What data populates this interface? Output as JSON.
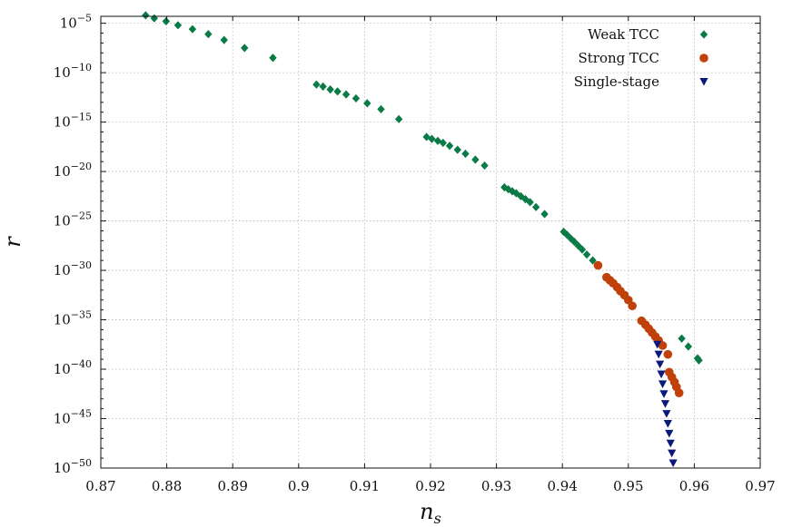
{
  "chart_data": {
    "type": "scatter",
    "xlabel_main": "n",
    "xlabel_sub": "s",
    "ylabel": "r",
    "xlim": [
      0.87,
      0.97
    ],
    "ylim_log10": [
      -50,
      -4.3
    ],
    "log_y": true,
    "grid": true,
    "legend_position": "top-right",
    "x_ticks": [
      "0.87",
      "0.88",
      "0.89",
      "0.9",
      "0.91",
      "0.92",
      "0.93",
      "0.94",
      "0.95",
      "0.96",
      "0.97"
    ],
    "x_tick_values": [
      0.87,
      0.88,
      0.89,
      0.9,
      0.91,
      0.92,
      0.93,
      0.94,
      0.95,
      0.96,
      0.97
    ],
    "y_tick_exponents": [
      "−5",
      "−10",
      "−15",
      "−20",
      "−25",
      "−30",
      "−35",
      "−40",
      "−45",
      "−50"
    ],
    "y_tick_values_log10": [
      -5,
      -10,
      -15,
      -20,
      -25,
      -30,
      -35,
      -40,
      -45,
      -50
    ],
    "y_tick_base": "10",
    "series": [
      {
        "name": "Weak TCC",
        "marker": "diamond",
        "color": "#0a7a46",
        "points": [
          [
            0.8768,
            -4.2
          ],
          [
            0.8781,
            -4.5
          ],
          [
            0.8799,
            -4.8
          ],
          [
            0.8817,
            -5.2
          ],
          [
            0.8839,
            -5.6
          ],
          [
            0.8863,
            -6.1
          ],
          [
            0.8887,
            -6.7
          ],
          [
            0.8918,
            -7.5
          ],
          [
            0.8961,
            -8.5
          ],
          [
            0.9027,
            -11.2
          ],
          [
            0.9037,
            -11.4
          ],
          [
            0.9048,
            -11.7
          ],
          [
            0.9059,
            -11.9
          ],
          [
            0.9072,
            -12.2
          ],
          [
            0.9087,
            -12.6
          ],
          [
            0.9104,
            -13.1
          ],
          [
            0.9125,
            -13.7
          ],
          [
            0.9152,
            -14.7
          ],
          [
            0.9194,
            -16.5
          ],
          [
            0.9202,
            -16.7
          ],
          [
            0.9211,
            -16.9
          ],
          [
            0.9219,
            -17.1
          ],
          [
            0.9229,
            -17.4
          ],
          [
            0.9241,
            -17.8
          ],
          [
            0.9253,
            -18.2
          ],
          [
            0.9268,
            -18.8
          ],
          [
            0.9282,
            -19.4
          ],
          [
            0.9312,
            -21.6
          ],
          [
            0.9318,
            -21.8
          ],
          [
            0.9324,
            -22.0
          ],
          [
            0.933,
            -22.2
          ],
          [
            0.9337,
            -22.5
          ],
          [
            0.9344,
            -22.8
          ],
          [
            0.9351,
            -23.1
          ],
          [
            0.936,
            -23.6
          ],
          [
            0.9373,
            -24.3
          ],
          [
            0.9402,
            -26.1
          ],
          [
            0.9407,
            -26.4
          ],
          [
            0.9413,
            -26.8
          ],
          [
            0.9418,
            -27.1
          ],
          [
            0.9424,
            -27.5
          ],
          [
            0.943,
            -27.9
          ],
          [
            0.9437,
            -28.4
          ],
          [
            0.9446,
            -29.0
          ],
          [
            0.9581,
            -36.9
          ],
          [
            0.9591,
            -37.7
          ],
          [
            0.9605,
            -38.9
          ],
          [
            0.9607,
            -39.1
          ]
        ]
      },
      {
        "name": "Strong TCC",
        "marker": "circle",
        "color": "#c0410a",
        "points": [
          [
            0.9454,
            -29.5
          ],
          [
            0.9467,
            -30.7
          ],
          [
            0.9472,
            -31.0
          ],
          [
            0.9477,
            -31.3
          ],
          [
            0.9483,
            -31.7
          ],
          [
            0.9488,
            -32.1
          ],
          [
            0.9494,
            -32.5
          ],
          [
            0.95,
            -33.0
          ],
          [
            0.9506,
            -33.6
          ],
          [
            0.952,
            -35.1
          ],
          [
            0.9526,
            -35.5
          ],
          [
            0.9531,
            -35.9
          ],
          [
            0.9536,
            -36.3
          ],
          [
            0.9541,
            -36.7
          ],
          [
            0.9546,
            -37.1
          ],
          [
            0.9552,
            -37.6
          ],
          [
            0.956,
            -38.5
          ],
          [
            0.9562,
            -40.3
          ],
          [
            0.9566,
            -40.8
          ],
          [
            0.957,
            -41.3
          ],
          [
            0.9573,
            -41.8
          ],
          [
            0.9577,
            -42.4
          ]
        ]
      },
      {
        "name": "Single-stage",
        "marker": "triangle-down",
        "color": "#0b1a7a",
        "points": [
          [
            0.9544,
            -37.5
          ],
          [
            0.9546,
            -38.5
          ],
          [
            0.9548,
            -39.5
          ],
          [
            0.955,
            -40.5
          ],
          [
            0.9552,
            -41.5
          ],
          [
            0.9554,
            -42.5
          ],
          [
            0.9556,
            -43.5
          ],
          [
            0.9558,
            -44.5
          ],
          [
            0.956,
            -45.5
          ],
          [
            0.9562,
            -46.5
          ],
          [
            0.9564,
            -47.5
          ],
          [
            0.9566,
            -48.5
          ],
          [
            0.9568,
            -49.5
          ],
          [
            0.957,
            -50.5
          ],
          [
            0.9572,
            -51.5
          ],
          [
            0.9574,
            -52.5
          ],
          [
            0.9576,
            -53.5
          ],
          [
            0.9578,
            -54.6
          ]
        ]
      }
    ]
  }
}
